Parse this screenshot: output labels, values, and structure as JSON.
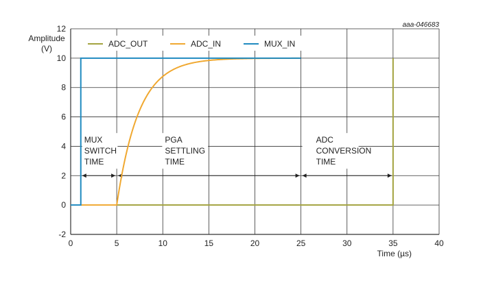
{
  "figure_id": "aaa-046683",
  "chart_data": {
    "type": "line",
    "title": "",
    "xlabel": "Time (µs)",
    "ylabel_lines": [
      "Amplitude",
      "(V)"
    ],
    "xlim": [
      0,
      40
    ],
    "ylim": [
      -2,
      12
    ],
    "xticks": [
      0,
      5,
      10,
      15,
      20,
      25,
      30,
      35,
      40
    ],
    "yticks": [
      -2,
      0,
      2,
      4,
      6,
      8,
      10,
      12
    ],
    "grid": true,
    "legend_placement": "top",
    "series": [
      {
        "name": "ADC_OUT",
        "color": "#a3a33f",
        "points": [
          [
            5,
            0
          ],
          [
            35,
            0
          ],
          [
            35,
            10
          ]
        ]
      },
      {
        "name": "ADC_IN",
        "color": "#f0a830",
        "points": [
          [
            1.1,
            0
          ],
          [
            5,
            0
          ],
          [
            6,
            3.4
          ],
          [
            7,
            5.6
          ],
          [
            8,
            7.1
          ],
          [
            10,
            8.7
          ],
          [
            12,
            9.4
          ],
          [
            15,
            9.8
          ],
          [
            18,
            9.95
          ],
          [
            20,
            10
          ],
          [
            25,
            10
          ]
        ],
        "curve": "exponential rise from 5 µs"
      },
      {
        "name": "MUX_IN",
        "color": "#1f8ac0",
        "points": [
          [
            0,
            0
          ],
          [
            1.1,
            0
          ],
          [
            1.1,
            10
          ],
          [
            25,
            10
          ]
        ]
      }
    ],
    "annotations": [
      {
        "lines": [
          "MUX",
          "SWITCH",
          "TIME"
        ],
        "span": [
          1.1,
          5
        ],
        "y": 2
      },
      {
        "lines": [
          "PGA",
          "SETTLING",
          "TIME"
        ],
        "span": [
          5,
          25
        ],
        "y": 2
      },
      {
        "lines": [
          "ADC",
          "CONVERSION",
          "TIME"
        ],
        "span": [
          25,
          35
        ],
        "y": 2
      }
    ]
  }
}
